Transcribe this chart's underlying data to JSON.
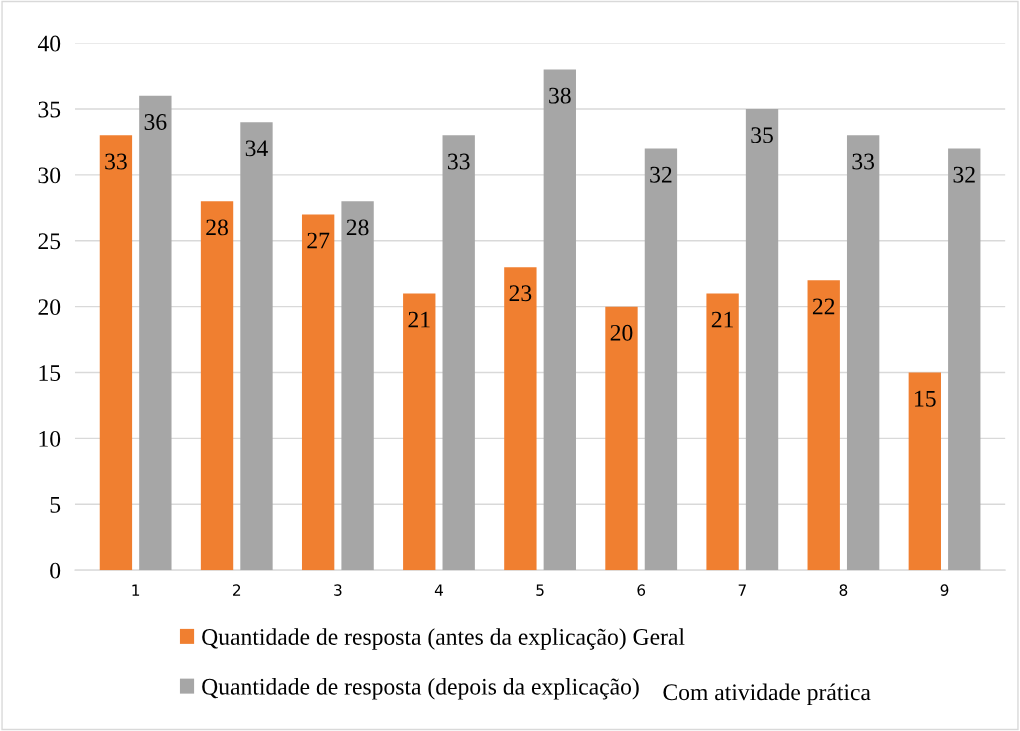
{
  "chart_data": {
    "type": "bar",
    "categories": [
      "1",
      "2",
      "3",
      "4",
      "5",
      "6",
      "7",
      "8",
      "9"
    ],
    "series": [
      {
        "name": "Quantidade de resposta (antes da explicação) Geral",
        "color": "#f07f30",
        "values": [
          33,
          28,
          27,
          21,
          23,
          20,
          21,
          22,
          15
        ]
      },
      {
        "name": "Quantidade de resposta (depois da explicação)",
        "color": "#a6a6a6",
        "values": [
          36,
          34,
          28,
          33,
          38,
          32,
          35,
          33,
          32
        ]
      }
    ],
    "annotations": [
      "Com atividade prática"
    ],
    "ylim": [
      0,
      40
    ],
    "yticks": [
      0,
      5,
      10,
      15,
      20,
      25,
      30,
      35,
      40
    ],
    "grid": "y",
    "legend": "bottom",
    "data_labels": true
  }
}
